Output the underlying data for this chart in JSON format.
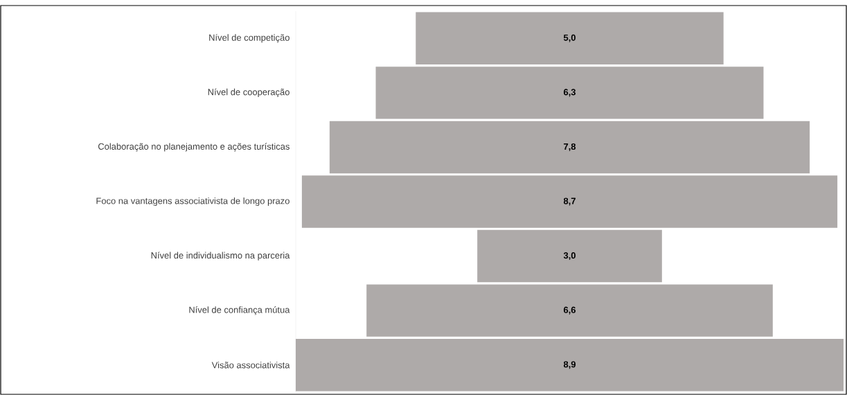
{
  "chart_data": {
    "type": "other",
    "categories": [
      "Nível de competição",
      "Nível de cooperação",
      "Colaboração no planejamento e ações turísticas",
      "Foco na vantagens associativista de longo prazo",
      "Nível de individualismo na parceria",
      "Nível de confiança mútua",
      "Visão associativista"
    ],
    "values": [
      5.0,
      6.3,
      7.8,
      8.7,
      3.0,
      6.6,
      8.9
    ],
    "value_labels": [
      "5,0",
      "6,3",
      "7,8",
      "8,7",
      "3,0",
      "6,6",
      "8,9"
    ],
    "color": "#aeaaa9"
  }
}
